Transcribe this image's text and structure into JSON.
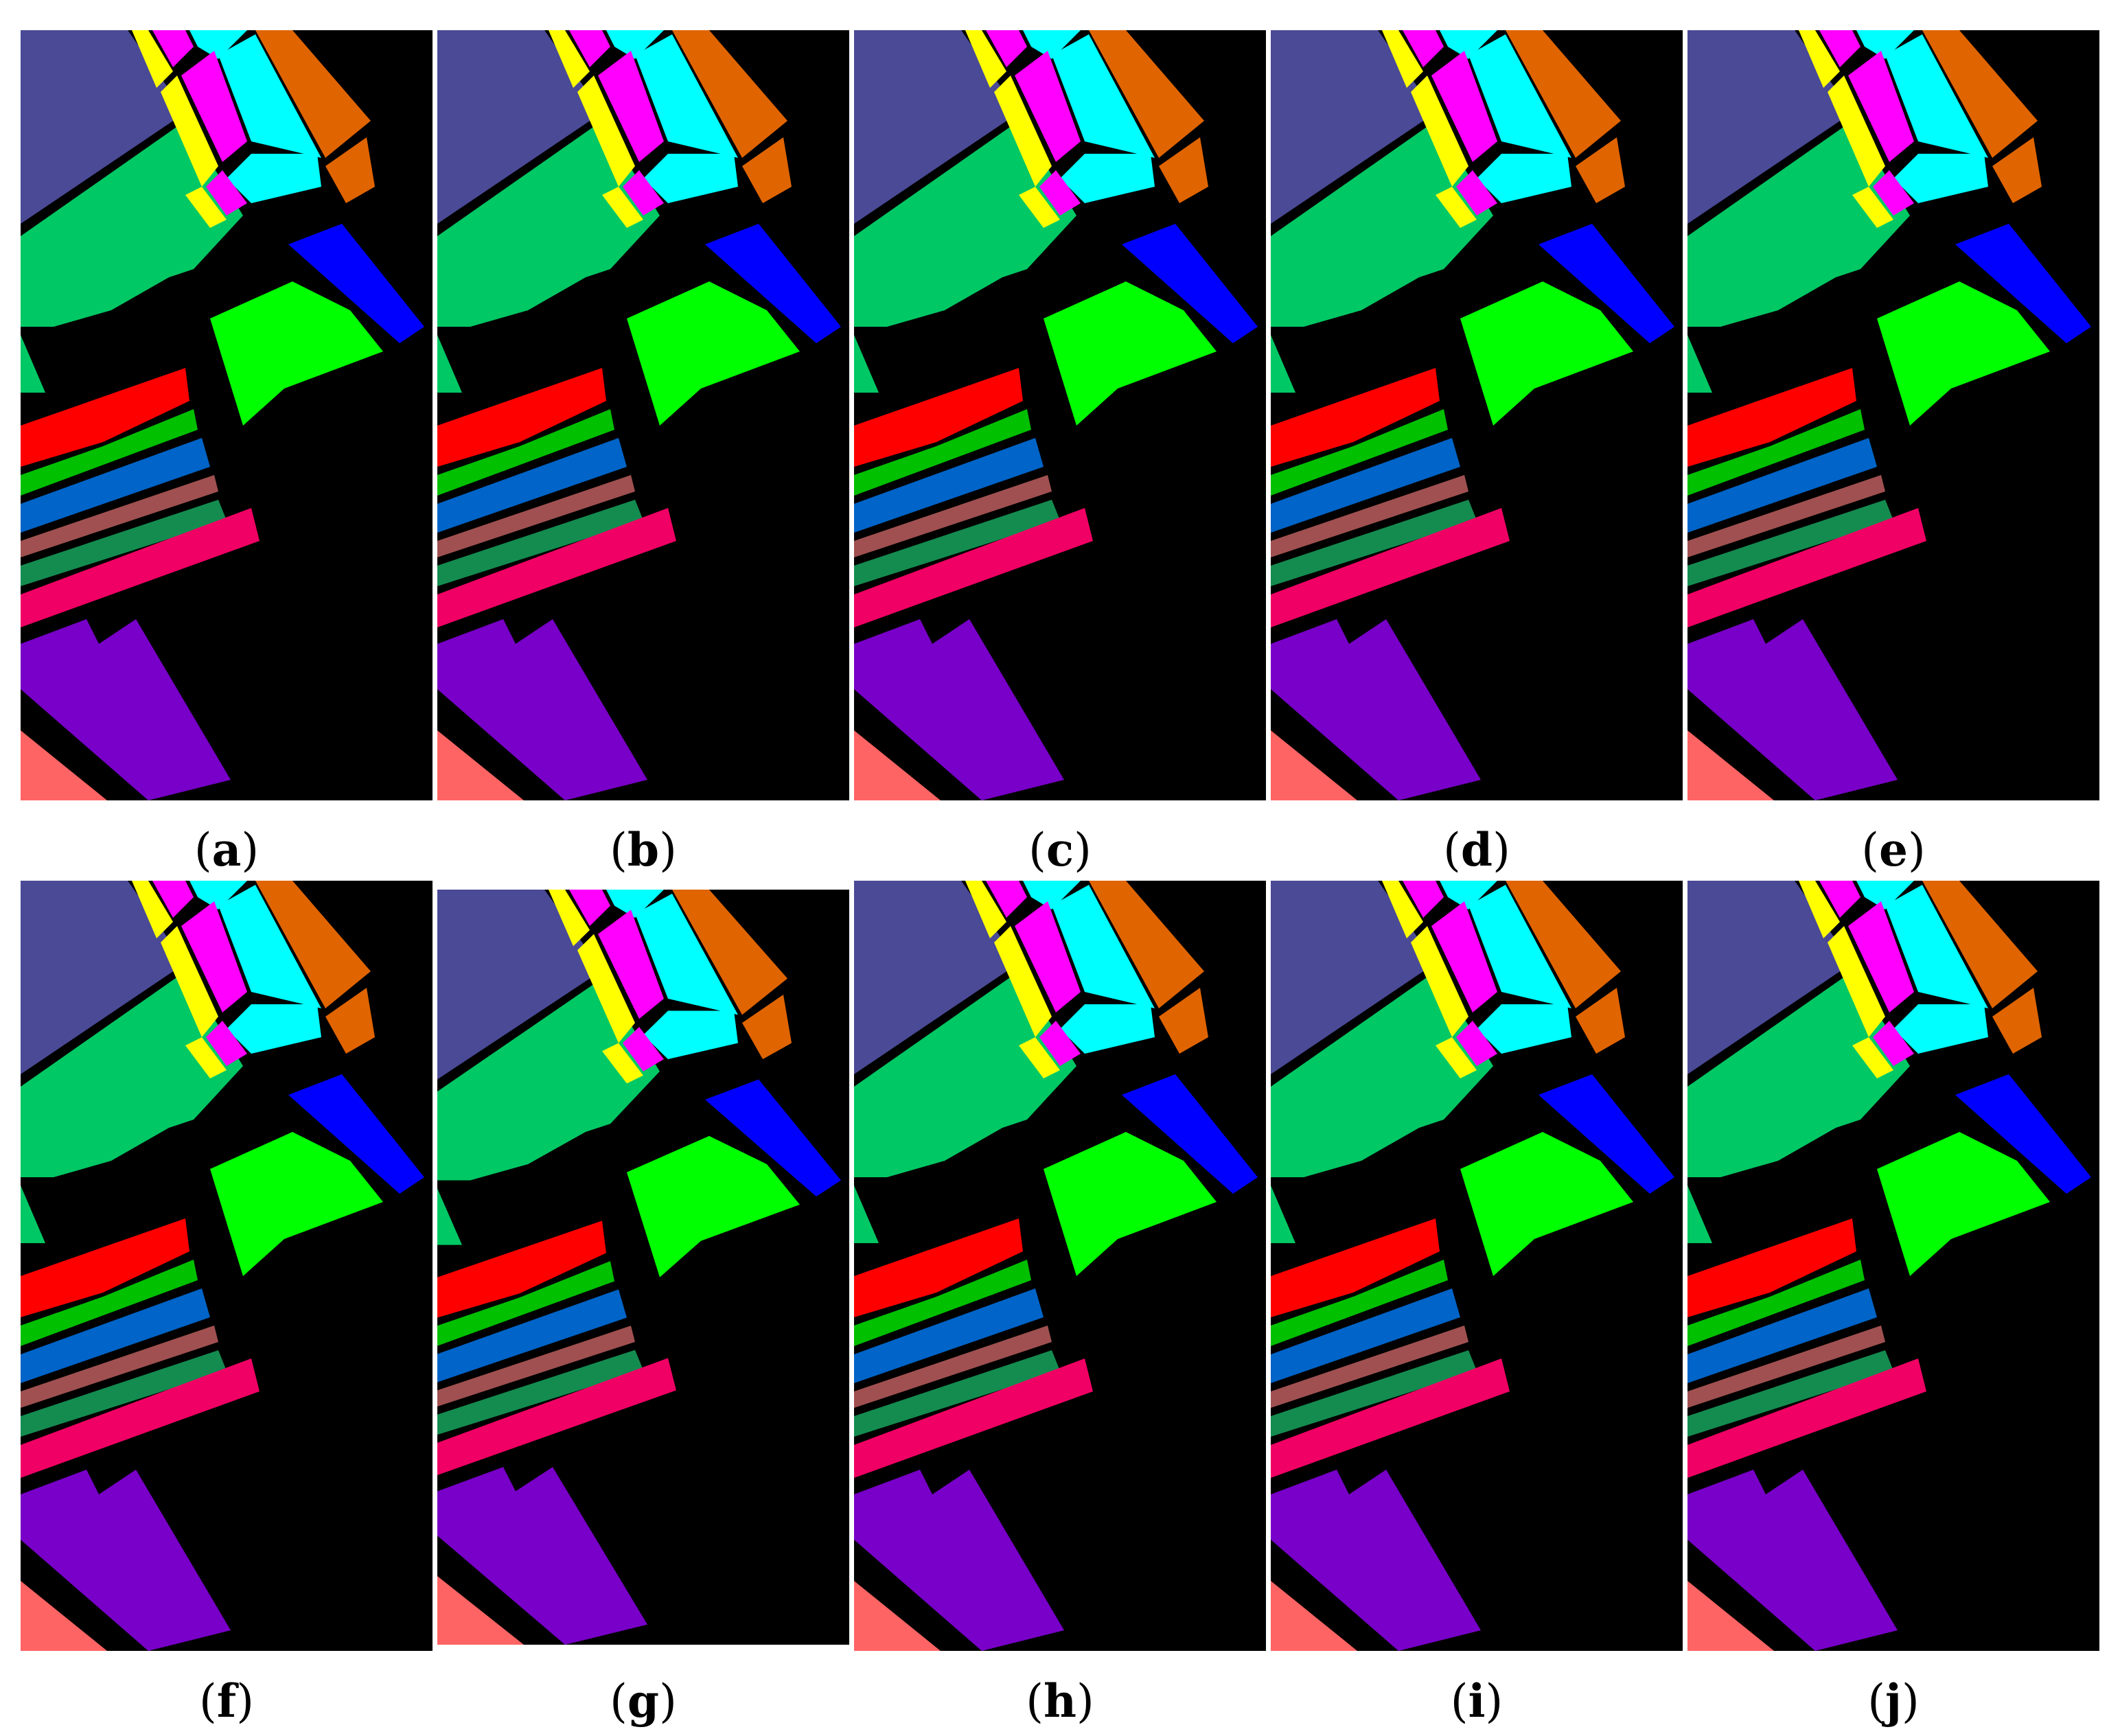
{
  "figure": {
    "panels": [
      {
        "id": "a",
        "label": "a"
      },
      {
        "id": "b",
        "label": "b"
      },
      {
        "id": "c",
        "label": "c"
      },
      {
        "id": "d",
        "label": "d"
      },
      {
        "id": "e",
        "label": "e"
      },
      {
        "id": "f",
        "label": "f"
      },
      {
        "id": "g",
        "label": "g"
      },
      {
        "id": "h",
        "label": "h"
      },
      {
        "id": "i",
        "label": "i"
      },
      {
        "id": "j",
        "label": "j"
      }
    ],
    "class_colors": {
      "slate_blue": "#4a4a96",
      "green": "#00c864",
      "yellow": "#ffff00",
      "magenta": "#ff00ff",
      "cyan": "#00ffff",
      "orange": "#e06400",
      "blue": "#0000ff",
      "lime": "#00ff00",
      "red": "#ff0000",
      "grass": "#00c000",
      "mid_blue": "#0064c8",
      "rose_brown": "#a05050",
      "sea_green": "#148c50",
      "crimson": "#f00064",
      "violet": "#7800c8",
      "salmon": "#ff6464",
      "background": "#000000"
    }
  }
}
